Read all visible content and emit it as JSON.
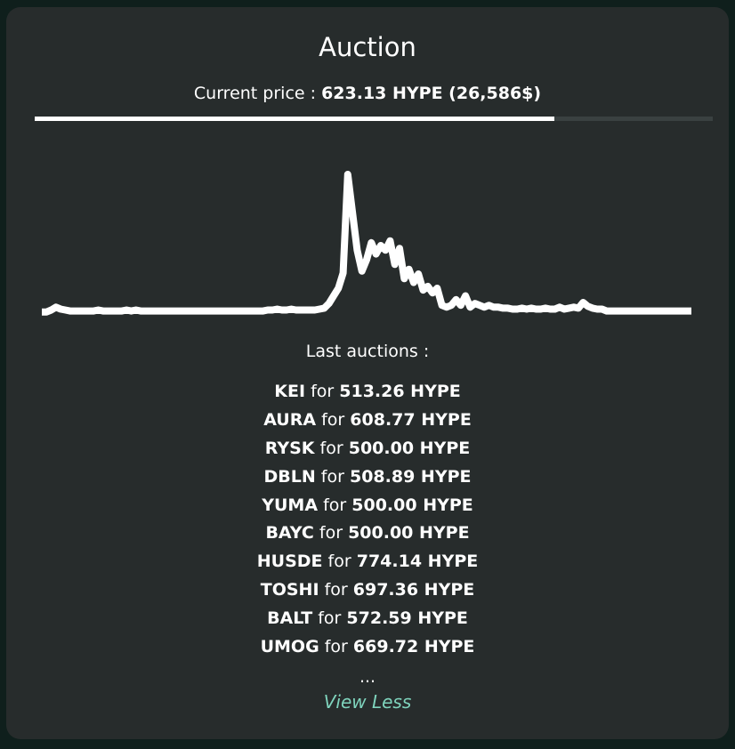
{
  "title": "Auction",
  "price": {
    "label": "Current price : ",
    "value": "623.13 HYPE (26,586$)",
    "progress_fraction": 0.766
  },
  "chart_data": {
    "type": "line",
    "color": "#ffffff",
    "values": [
      5,
      5,
      7,
      10,
      8,
      7,
      6,
      6,
      6,
      6,
      6,
      6,
      7,
      6,
      6,
      6,
      6,
      6,
      7,
      6,
      7,
      6,
      6,
      6,
      6,
      6,
      6,
      6,
      6,
      6,
      6,
      6,
      6,
      6,
      6,
      6,
      6,
      6,
      6,
      6,
      6,
      6,
      6,
      6,
      6,
      6,
      6,
      6,
      7,
      7,
      8,
      7,
      7,
      8,
      7,
      7,
      7,
      7,
      7,
      8,
      9,
      14,
      22,
      30,
      46,
      150,
      110,
      70,
      48,
      60,
      78,
      66,
      75,
      70,
      80,
      55,
      72,
      40,
      50,
      36,
      45,
      28,
      32,
      25,
      30,
      12,
      10,
      12,
      18,
      12,
      22,
      10,
      14,
      12,
      10,
      12,
      10,
      10,
      9,
      9,
      8,
      8,
      9,
      8,
      9,
      8,
      8,
      9,
      8,
      8,
      10,
      8,
      9,
      10,
      9,
      15,
      11,
      9,
      8,
      8,
      6,
      6,
      6,
      6,
      6,
      6,
      6,
      6,
      6,
      6,
      6,
      6,
      6,
      6,
      6,
      6,
      6,
      6,
      6
    ],
    "ylim": [
      0,
      150
    ]
  },
  "last_auctions": {
    "label": "Last auctions :",
    "connector": " for ",
    "items": [
      {
        "name": "KEI",
        "amount": "513.26 HYPE"
      },
      {
        "name": "AURA",
        "amount": "608.77 HYPE"
      },
      {
        "name": "RYSK",
        "amount": "500.00 HYPE"
      },
      {
        "name": "DBLN",
        "amount": "508.89 HYPE"
      },
      {
        "name": "YUMA",
        "amount": "500.00 HYPE"
      },
      {
        "name": "BAYC",
        "amount": "500.00 HYPE"
      },
      {
        "name": "HUSDE",
        "amount": "774.14 HYPE"
      },
      {
        "name": "TOSHI",
        "amount": "697.36 HYPE"
      },
      {
        "name": "BALT",
        "amount": "572.59 HYPE"
      },
      {
        "name": "UMOG",
        "amount": "669.72 HYPE"
      }
    ],
    "more": "...",
    "view_less": "View Less"
  }
}
